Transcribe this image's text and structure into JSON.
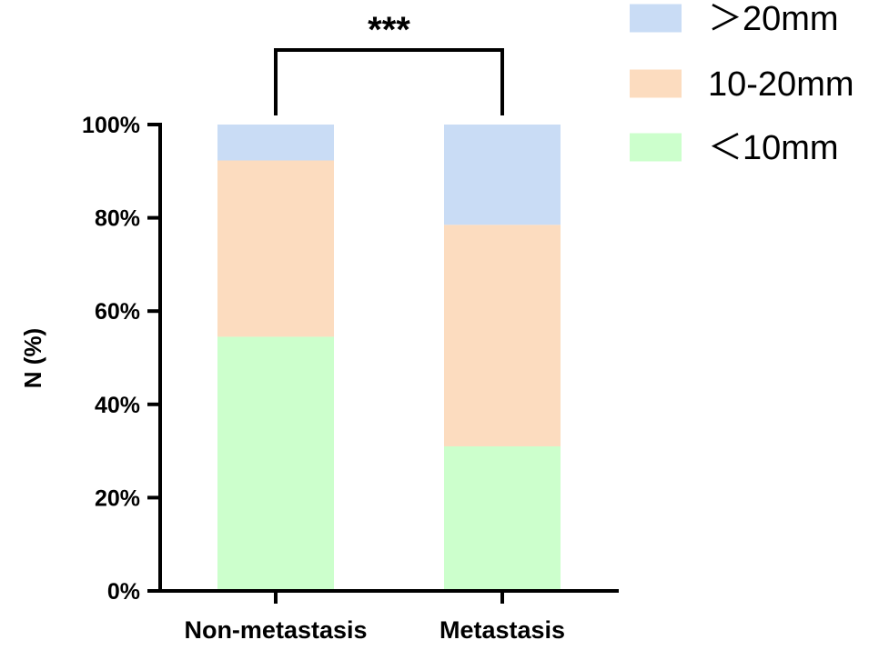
{
  "chart_data": {
    "type": "bar",
    "stacked": true,
    "categories": [
      "Non-metastasis",
      "Metastasis"
    ],
    "series": [
      {
        "name": "＜10mm",
        "values": [
          54.5,
          31
        ],
        "color": "#ccffcc"
      },
      {
        "name": "10-20mm",
        "values": [
          37.8,
          47.5
        ],
        "color": "#fcdcbf"
      },
      {
        "name": "＞20mm",
        "values": [
          7.7,
          21.5
        ],
        "color": "#c9dcf5"
      }
    ],
    "legend_order": [
      "＞20mm",
      "10-20mm",
      "＜10mm"
    ],
    "legend_position": "top-right",
    "ylabel": "N (%)",
    "xlabel": "",
    "ylim": [
      0,
      100
    ],
    "yticks": [
      0,
      20,
      40,
      60,
      80,
      100
    ],
    "ytick_labels": [
      "0%",
      "20%",
      "40%",
      "60%",
      "80%",
      "100%"
    ],
    "grid": false,
    "annotation": {
      "text": "***",
      "between": [
        "Non-metastasis",
        "Metastasis"
      ]
    }
  }
}
